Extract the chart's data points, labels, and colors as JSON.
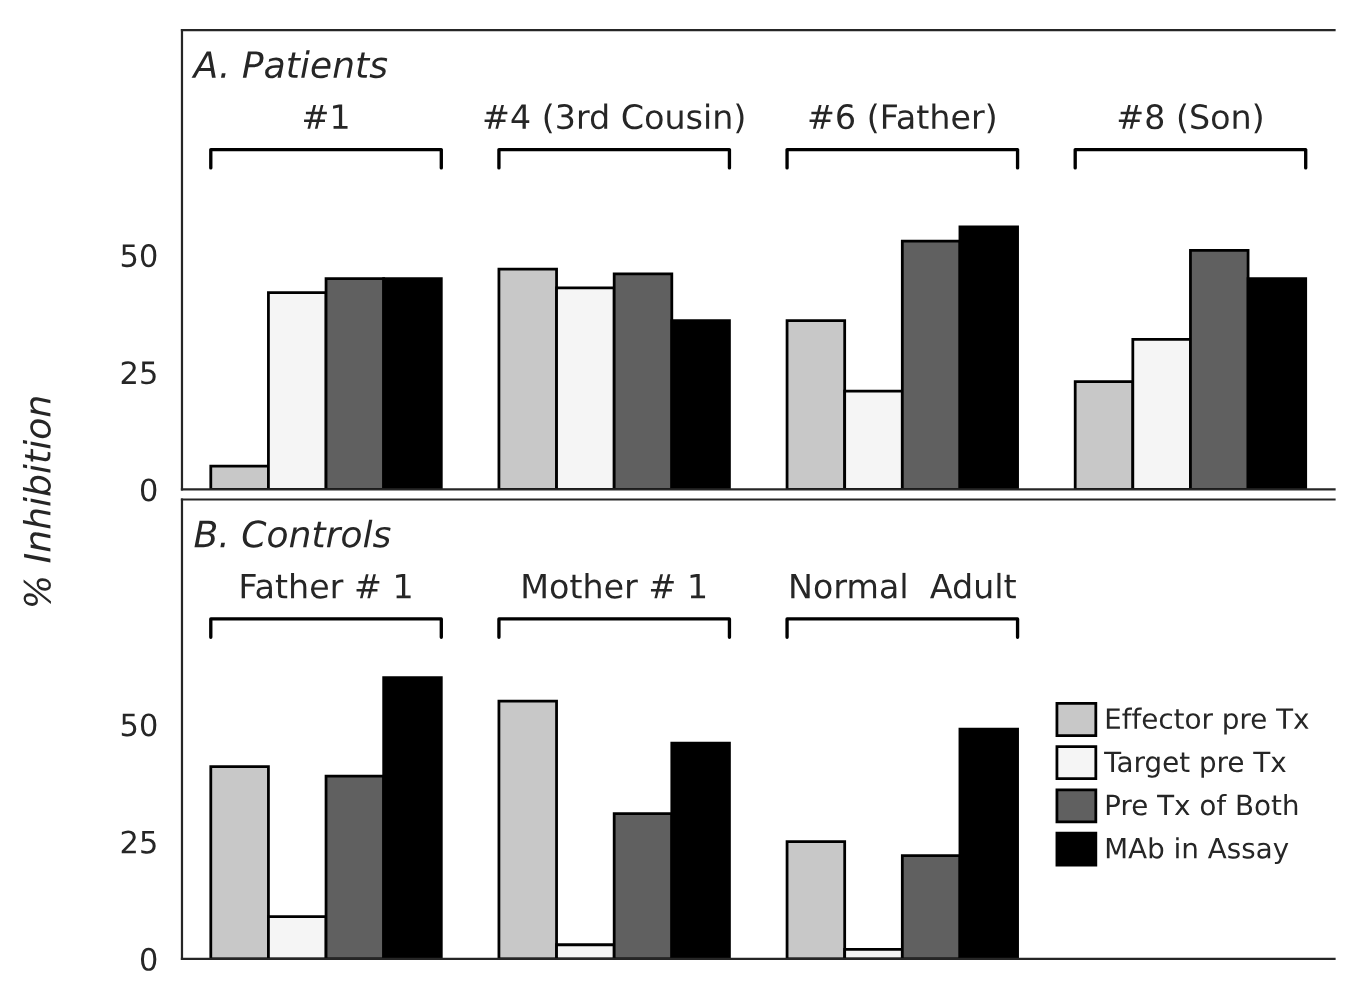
{
  "chart_data": [
    {
      "type": "bar",
      "title": "A. Patients",
      "ylabel": "% Inhibition",
      "categories": [
        "#1",
        "#4 (3rd Cousin)",
        "#6 (Father)",
        "#8 (Son)"
      ],
      "series": [
        {
          "color": "#c8c8c8",
          "values": [
            5,
            47,
            36,
            23
          ]
        },
        {
          "color": "#f5f5f5",
          "values": [
            42,
            43,
            21,
            32
          ]
        },
        {
          "color": "#606060",
          "values": [
            45,
            46,
            53,
            51
          ]
        },
        {
          "color": "#000000",
          "values": [
            45,
            36,
            56,
            45
          ]
        }
      ],
      "ylim": [
        0,
        98
      ],
      "yticks": [
        0,
        25,
        50
      ],
      "tick_labels": "y",
      "grid": false,
      "legend": false
    },
    {
      "type": "bar",
      "title": "B. Controls",
      "categories": [
        "Father # 1",
        "Mother # 1",
        "Normal  Adult"
      ],
      "series": [
        {
          "name": "Effector pre Tx",
          "color": "#c8c8c8",
          "values": [
            41,
            55,
            25
          ]
        },
        {
          "name": "Target pre Tx",
          "color": "#f5f5f5",
          "values": [
            9,
            3,
            2
          ]
        },
        {
          "name": "Pre Tx of Both",
          "color": "#606060",
          "values": [
            39,
            31,
            22
          ]
        },
        {
          "name": "MAb in Assay",
          "color": "#000000",
          "values": [
            60,
            46,
            49
          ]
        }
      ],
      "ylim": [
        0,
        98
      ],
      "yticks": [
        0,
        25,
        50
      ],
      "tick_labels": "y",
      "grid": false,
      "legend": "right"
    }
  ]
}
